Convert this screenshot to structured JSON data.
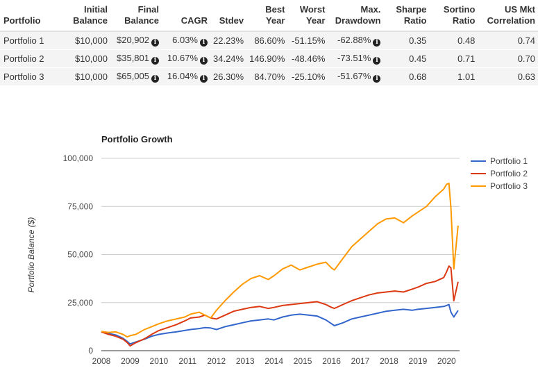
{
  "table": {
    "headers": [
      [
        "Portfolio"
      ],
      [
        "Initial",
        "Balance"
      ],
      [
        "Final",
        "Balance"
      ],
      [
        "CAGR"
      ],
      [
        "Stdev"
      ],
      [
        "Best",
        "Year"
      ],
      [
        "Worst",
        "Year"
      ],
      [
        "Max.",
        "Drawdown"
      ],
      [
        "Sharpe",
        "Ratio"
      ],
      [
        "Sortino",
        "Ratio"
      ],
      [
        "US Mkt",
        "Correlation"
      ]
    ],
    "rows": [
      {
        "name": "Portfolio 1",
        "initial": "$10,000",
        "final": "$20,902",
        "cagr": "6.03%",
        "stdev": "22.23%",
        "best": "86.60%",
        "worst": "-51.15%",
        "drawdown": "-62.88%",
        "sharpe": "0.35",
        "sortino": "0.48",
        "corr": "0.74"
      },
      {
        "name": "Portfolio 2",
        "initial": "$10,000",
        "final": "$35,801",
        "cagr": "10.67%",
        "stdev": "34.24%",
        "best": "146.90%",
        "worst": "-48.46%",
        "drawdown": "-73.51%",
        "sharpe": "0.45",
        "sortino": "0.71",
        "corr": "0.70"
      },
      {
        "name": "Portfolio 3",
        "initial": "$10,000",
        "final": "$65,005",
        "cagr": "16.04%",
        "stdev": "26.30%",
        "best": "84.70%",
        "worst": "-25.10%",
        "drawdown": "-51.67%",
        "sharpe": "0.68",
        "sortino": "1.01",
        "corr": "0.63"
      }
    ],
    "info_icon": "info-circle-icon"
  },
  "chart_data": {
    "type": "line",
    "title": "Portfolio Growth",
    "ylabel": "Portfolio Balance ($)",
    "xlabel": "",
    "ylim": [
      0,
      100000
    ],
    "xlim": [
      2008,
      2020.45
    ],
    "yticks": [
      0,
      25000,
      50000,
      75000,
      100000
    ],
    "ytick_labels": [
      "0",
      "25,000",
      "50,000",
      "75,000",
      "100,000"
    ],
    "xticks": [
      2008,
      2009,
      2010,
      2011,
      2012,
      2013,
      2014,
      2015,
      2016,
      2017,
      2018,
      2019,
      2020
    ],
    "xtick_labels": [
      "2008",
      "2009",
      "2010",
      "2011",
      "2012",
      "2013",
      "2014",
      "2015",
      "2016",
      "2017",
      "2018",
      "2019",
      "2020"
    ],
    "grid": true,
    "legend_position": "right",
    "series": [
      {
        "name": "Portfolio 1",
        "color": "#3366cc",
        "x": [
          2008.0,
          2008.25,
          2008.5,
          2008.75,
          2008.9,
          2009.0,
          2009.2,
          2009.5,
          2009.75,
          2010.0,
          2010.3,
          2010.6,
          2010.9,
          2011.1,
          2011.4,
          2011.6,
          2011.8,
          2012.0,
          2012.3,
          2012.6,
          2012.9,
          2013.2,
          2013.5,
          2013.8,
          2014.0,
          2014.3,
          2014.6,
          2014.9,
          2015.2,
          2015.5,
          2015.8,
          2016.0,
          2016.1,
          2016.4,
          2016.7,
          2017.0,
          2017.3,
          2017.6,
          2017.9,
          2018.2,
          2018.5,
          2018.8,
          2019.0,
          2019.3,
          2019.6,
          2019.9,
          2020.0,
          2020.08,
          2020.15,
          2020.25,
          2020.4
        ],
        "y": [
          9800,
          9000,
          8200,
          6500,
          4800,
          3500,
          4500,
          6000,
          7500,
          8500,
          9200,
          9800,
          10500,
          11000,
          11500,
          12000,
          11800,
          11000,
          12500,
          13500,
          14500,
          15500,
          16000,
          16500,
          16000,
          17500,
          18500,
          19000,
          18500,
          18000,
          16000,
          14000,
          13000,
          14500,
          16500,
          17500,
          18500,
          19500,
          20500,
          21000,
          21500,
          21000,
          21500,
          22000,
          22500,
          23000,
          23500,
          24000,
          20000,
          17500,
          20902
        ]
      },
      {
        "name": "Portfolio 2",
        "color": "#dc3912",
        "x": [
          2008.0,
          2008.25,
          2008.5,
          2008.75,
          2008.9,
          2009.0,
          2009.2,
          2009.5,
          2009.75,
          2010.0,
          2010.3,
          2010.6,
          2010.9,
          2011.1,
          2011.4,
          2011.6,
          2011.8,
          2012.0,
          2012.3,
          2012.6,
          2012.9,
          2013.2,
          2013.5,
          2013.8,
          2014.0,
          2014.3,
          2014.6,
          2014.9,
          2015.2,
          2015.5,
          2015.8,
          2016.0,
          2016.1,
          2016.4,
          2016.7,
          2017.0,
          2017.3,
          2017.6,
          2017.9,
          2018.2,
          2018.5,
          2018.8,
          2019.0,
          2019.3,
          2019.6,
          2019.9,
          2020.0,
          2020.08,
          2020.15,
          2020.25,
          2020.4
        ],
        "y": [
          9800,
          8500,
          7500,
          6000,
          4200,
          2500,
          4200,
          6200,
          8500,
          10500,
          12000,
          13500,
          15500,
          17000,
          17500,
          18500,
          17000,
          16500,
          18500,
          20500,
          21500,
          22500,
          23000,
          22000,
          22500,
          23500,
          24000,
          24500,
          25000,
          25500,
          24000,
          22500,
          22000,
          24000,
          26000,
          27500,
          29000,
          30000,
          30500,
          31000,
          30500,
          32000,
          33000,
          35000,
          36000,
          38000,
          41000,
          44000,
          43000,
          26000,
          35801
        ]
      },
      {
        "name": "Portfolio 3",
        "color": "#ff9900",
        "x": [
          2008.0,
          2008.25,
          2008.5,
          2008.75,
          2008.9,
          2009.0,
          2009.2,
          2009.5,
          2009.75,
          2010.0,
          2010.3,
          2010.6,
          2010.9,
          2011.1,
          2011.4,
          2011.6,
          2011.8,
          2012.0,
          2012.3,
          2012.6,
          2012.9,
          2013.2,
          2013.5,
          2013.8,
          2014.0,
          2014.3,
          2014.6,
          2014.9,
          2015.2,
          2015.5,
          2015.8,
          2016.0,
          2016.1,
          2016.4,
          2016.7,
          2017.0,
          2017.3,
          2017.6,
          2017.9,
          2018.2,
          2018.5,
          2018.8,
          2019.0,
          2019.3,
          2019.6,
          2019.9,
          2020.0,
          2020.08,
          2020.15,
          2020.25,
          2020.4
        ],
        "y": [
          10000,
          9500,
          9800,
          8500,
          7200,
          7800,
          8500,
          11000,
          12500,
          14000,
          15500,
          16500,
          17500,
          19000,
          20000,
          18500,
          17000,
          21000,
          26000,
          30500,
          34500,
          37500,
          39000,
          37000,
          39000,
          42500,
          44500,
          42000,
          43500,
          45000,
          46000,
          43000,
          42000,
          48000,
          54000,
          58000,
          62000,
          66000,
          68500,
          69000,
          66500,
          70000,
          72000,
          75000,
          80000,
          84000,
          86500,
          87000,
          74000,
          42500,
          65005
        ]
      }
    ]
  }
}
